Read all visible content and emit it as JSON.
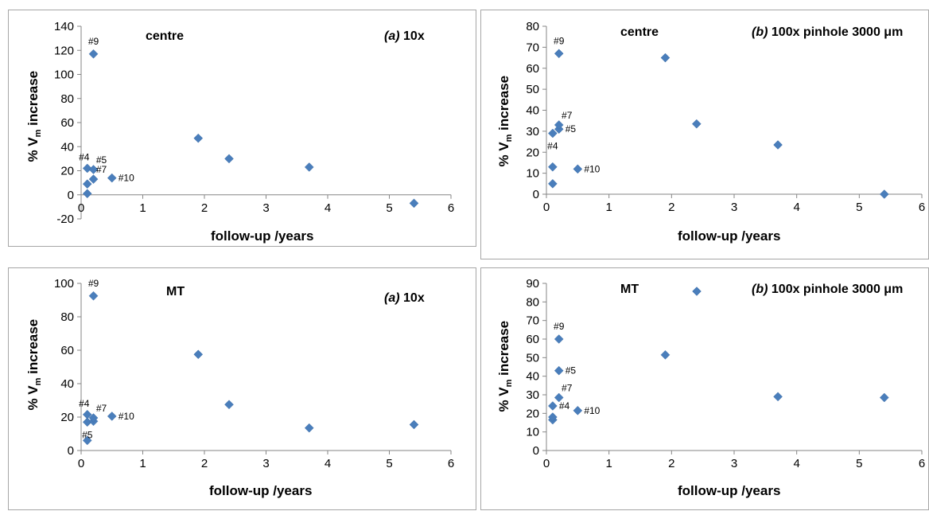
{
  "colors": {
    "marker": "#4a7ebb",
    "axis": "#868686",
    "frame": "#a6a6a6"
  },
  "chart_data": [
    {
      "type": "scatter",
      "title": "centre",
      "panel_label": {
        "letter": "(a)",
        "text": "10x"
      },
      "ylabel_main": "% V",
      "ylabel_sub": "m",
      "ylabel_rest": " increase",
      "xlabel": "follow-up /years",
      "xlim": [
        0,
        6
      ],
      "ylim": [
        -20,
        140
      ],
      "xticks": [
        0,
        1,
        2,
        3,
        4,
        5,
        6
      ],
      "yticks": [
        -20,
        0,
        20,
        40,
        60,
        80,
        100,
        120,
        140
      ],
      "grid": false,
      "points": [
        {
          "x": 0.1,
          "y": 1
        },
        {
          "x": 0.1,
          "y": 9
        },
        {
          "x": 0.1,
          "y": 22
        },
        {
          "x": 0.2,
          "y": 21
        },
        {
          "x": 0.2,
          "y": 13
        },
        {
          "x": 0.2,
          "y": 117
        },
        {
          "x": 0.5,
          "y": 14
        },
        {
          "x": 1.9,
          "y": 47
        },
        {
          "x": 2.4,
          "y": 30
        },
        {
          "x": 3.7,
          "y": 23
        },
        {
          "x": 5.4,
          "y": -7
        }
      ],
      "annotations": [
        {
          "text": "#9",
          "x": 0.2,
          "y": 117,
          "place": "above"
        },
        {
          "text": "#4",
          "x": 0.1,
          "y": 22,
          "place": "above-left"
        },
        {
          "text": "#5",
          "x": 0.2,
          "y": 21,
          "place": "above-right"
        },
        {
          "text": "#7",
          "x": 0.2,
          "y": 13,
          "place": "above-right"
        },
        {
          "text": "#10",
          "x": 0.5,
          "y": 14,
          "place": "right"
        }
      ]
    },
    {
      "type": "scatter",
      "title": "centre",
      "panel_label": {
        "letter": "(b)",
        "text": "100x pinhole 3000 μm"
      },
      "ylabel_main": "% V",
      "ylabel_sub": "m",
      "ylabel_rest": " increase",
      "xlabel": "follow-up /years",
      "xlim": [
        0,
        6
      ],
      "ylim": [
        0,
        80
      ],
      "xticks": [
        0,
        1,
        2,
        3,
        4,
        5,
        6
      ],
      "yticks": [
        0,
        10,
        20,
        30,
        40,
        50,
        60,
        70,
        80
      ],
      "grid": false,
      "points": [
        {
          "x": 0.1,
          "y": 5
        },
        {
          "x": 0.1,
          "y": 13
        },
        {
          "x": 0.1,
          "y": 29
        },
        {
          "x": 0.2,
          "y": 31
        },
        {
          "x": 0.2,
          "y": 33
        },
        {
          "x": 0.2,
          "y": 67
        },
        {
          "x": 0.5,
          "y": 12
        },
        {
          "x": 1.9,
          "y": 65
        },
        {
          "x": 2.4,
          "y": 33.5
        },
        {
          "x": 3.7,
          "y": 23.5
        },
        {
          "x": 5.4,
          "y": 0
        }
      ],
      "annotations": [
        {
          "text": "#9",
          "x": 0.2,
          "y": 67,
          "place": "above"
        },
        {
          "text": "#7",
          "x": 0.2,
          "y": 33,
          "place": "above-right"
        },
        {
          "text": "#5",
          "x": 0.2,
          "y": 31,
          "place": "right"
        },
        {
          "text": "#4",
          "x": 0.1,
          "y": 29,
          "place": "below"
        },
        {
          "text": "#10",
          "x": 0.5,
          "y": 12,
          "place": "right"
        }
      ]
    },
    {
      "type": "scatter",
      "title": "MT",
      "panel_label": {
        "letter": "(a)",
        "text": "10x"
      },
      "ylabel_main": "% V",
      "ylabel_sub": "m",
      "ylabel_rest": " increase",
      "xlabel": "follow-up /years",
      "xlim": [
        0,
        6
      ],
      "ylim": [
        0,
        100
      ],
      "xticks": [
        0,
        1,
        2,
        3,
        4,
        5,
        6
      ],
      "yticks": [
        0,
        20,
        40,
        60,
        80,
        100
      ],
      "grid": false,
      "points": [
        {
          "x": 0.1,
          "y": 6
        },
        {
          "x": 0.1,
          "y": 17
        },
        {
          "x": 0.1,
          "y": 21.5
        },
        {
          "x": 0.2,
          "y": 17.5
        },
        {
          "x": 0.2,
          "y": 19.5
        },
        {
          "x": 0.2,
          "y": 92.5
        },
        {
          "x": 0.5,
          "y": 20.5
        },
        {
          "x": 1.9,
          "y": 57.5
        },
        {
          "x": 2.4,
          "y": 27.5
        },
        {
          "x": 3.7,
          "y": 13.5
        },
        {
          "x": 5.4,
          "y": 15.5
        }
      ],
      "annotations": [
        {
          "text": "#9",
          "x": 0.2,
          "y": 92.5,
          "place": "above"
        },
        {
          "text": "#4",
          "x": 0.1,
          "y": 21.5,
          "place": "above-left"
        },
        {
          "text": "#7",
          "x": 0.2,
          "y": 19.5,
          "place": "above-right"
        },
        {
          "text": "#5",
          "x": 0.1,
          "y": 17,
          "place": "below"
        },
        {
          "text": "#10",
          "x": 0.5,
          "y": 20.5,
          "place": "right"
        }
      ]
    },
    {
      "type": "scatter",
      "title": "MT",
      "panel_label": {
        "letter": "(b)",
        "text": "100x pinhole 3000 μm"
      },
      "ylabel_main": "% V",
      "ylabel_sub": "m",
      "ylabel_rest": " increase",
      "xlabel": "follow-up /years",
      "xlim": [
        0,
        6
      ],
      "ylim": [
        0,
        90
      ],
      "xticks": [
        0,
        1,
        2,
        3,
        4,
        5,
        6
      ],
      "yticks": [
        0,
        10,
        20,
        30,
        40,
        50,
        60,
        70,
        80,
        90
      ],
      "grid": false,
      "points": [
        {
          "x": 0.1,
          "y": 16.5
        },
        {
          "x": 0.1,
          "y": 18
        },
        {
          "x": 0.1,
          "y": 24
        },
        {
          "x": 0.2,
          "y": 28.5
        },
        {
          "x": 0.2,
          "y": 43
        },
        {
          "x": 0.2,
          "y": 60
        },
        {
          "x": 0.5,
          "y": 21.5
        },
        {
          "x": 1.9,
          "y": 51.5
        },
        {
          "x": 3.7,
          "y": 29
        },
        {
          "x": 5.4,
          "y": 28.5
        }
      ],
      "annotations": [
        {
          "text": "#9",
          "x": 0.2,
          "y": 60,
          "place": "above"
        },
        {
          "text": "#5",
          "x": 0.2,
          "y": 43,
          "place": "right"
        },
        {
          "text": "#7",
          "x": 0.2,
          "y": 28.5,
          "place": "above-right"
        },
        {
          "text": "#4",
          "x": 0.1,
          "y": 24,
          "place": "right"
        },
        {
          "text": "#10",
          "x": 0.5,
          "y": 21.5,
          "place": "right"
        }
      ],
      "legend": {
        "marker": true
      }
    }
  ]
}
